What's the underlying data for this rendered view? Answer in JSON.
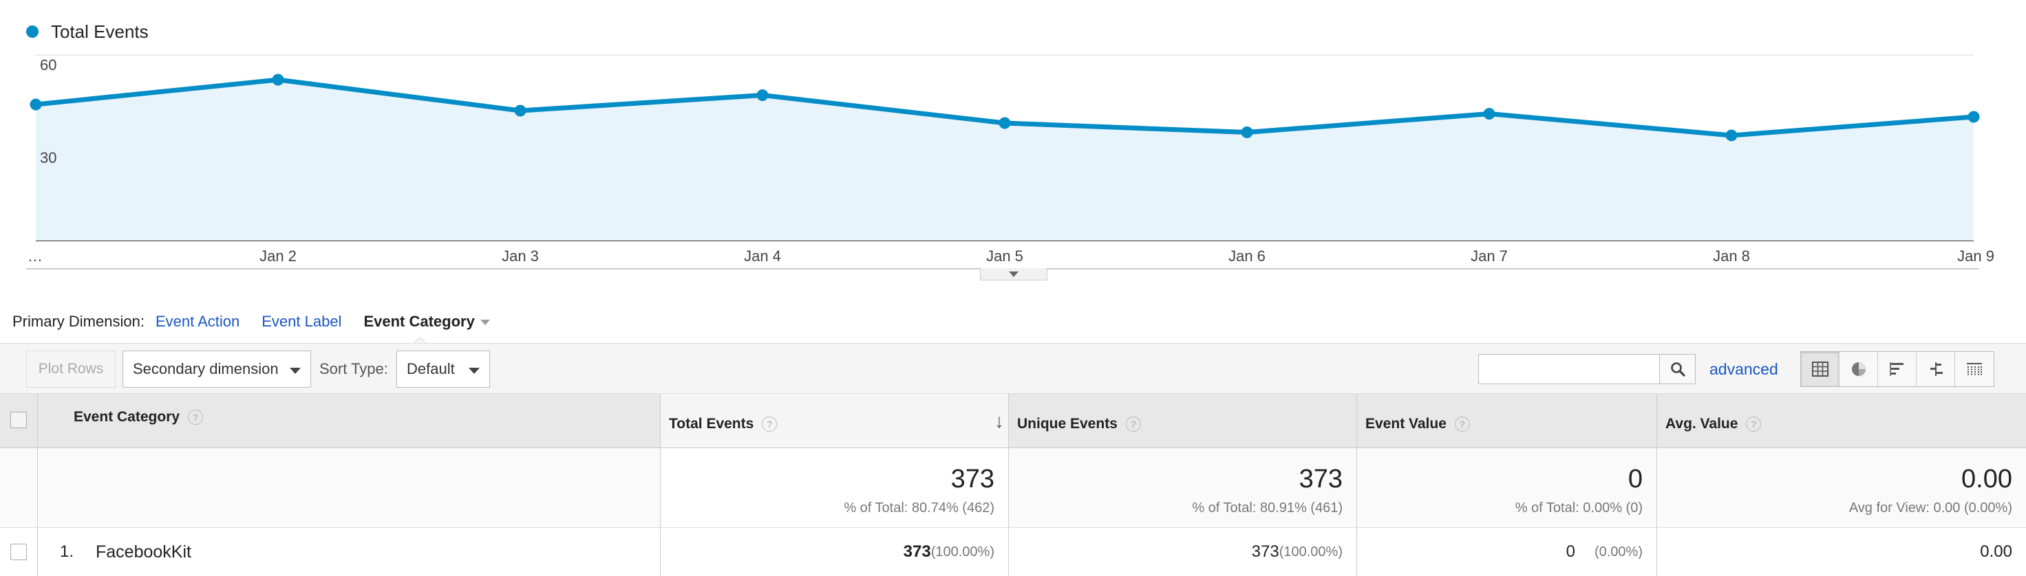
{
  "chart": {
    "legend_label": "Total Events",
    "series_color": "#058dc7",
    "fill_color": "#e8f4fb"
  },
  "chart_data": {
    "type": "area",
    "x": [
      "…",
      "Jan 2",
      "Jan 3",
      "Jan 4",
      "Jan 5",
      "Jan 6",
      "Jan 7",
      "Jan 8",
      "Jan 9"
    ],
    "series": [
      {
        "name": "Total Events",
        "values": [
          44,
          52,
          42,
          47,
          38,
          35,
          41,
          34,
          40
        ]
      }
    ],
    "y_ticks": [
      "60",
      "30"
    ],
    "ylim": [
      0,
      60
    ],
    "grid": true,
    "legend": "top-left"
  },
  "primary_dimension": {
    "label": "Primary Dimension:",
    "options": [
      "Event Action",
      "Event Label"
    ],
    "active": "Event Category"
  },
  "toolbar": {
    "plot_rows": "Plot Rows",
    "secondary_dimension": "Secondary dimension",
    "sort_type_label": "Sort Type:",
    "sort_type_value": "Default",
    "search_value": "",
    "advanced": "advanced",
    "view_icons": [
      "table-view-icon",
      "pie-view-icon",
      "performance-view-icon",
      "comparison-view-icon",
      "pivot-view-icon"
    ]
  },
  "table": {
    "headers": {
      "dimension": "Event Category",
      "m1": "Total Events",
      "m2": "Unique Events",
      "m3": "Event Value",
      "m4": "Avg. Value",
      "help": "?",
      "sort_arrow": "↓"
    },
    "totals": {
      "m1_value": "373",
      "m1_sub": "% of Total: 80.74% (462)",
      "m2_value": "373",
      "m2_sub": "% of Total: 80.91% (461)",
      "m3_value": "0",
      "m3_sub": "% of Total: 0.00% (0)",
      "m4_value": "0.00",
      "m4_sub": "Avg for View: 0.00 (0.00%)"
    },
    "rows": [
      {
        "index": "1.",
        "name": "FacebookKit",
        "m1_value": "373",
        "m1_pct": "(100.00%)",
        "m2_value": "373",
        "m2_pct": "(100.00%)",
        "m3_value": "0",
        "m3_pct": "(0.00%)",
        "m4_value": "0.00"
      }
    ]
  }
}
